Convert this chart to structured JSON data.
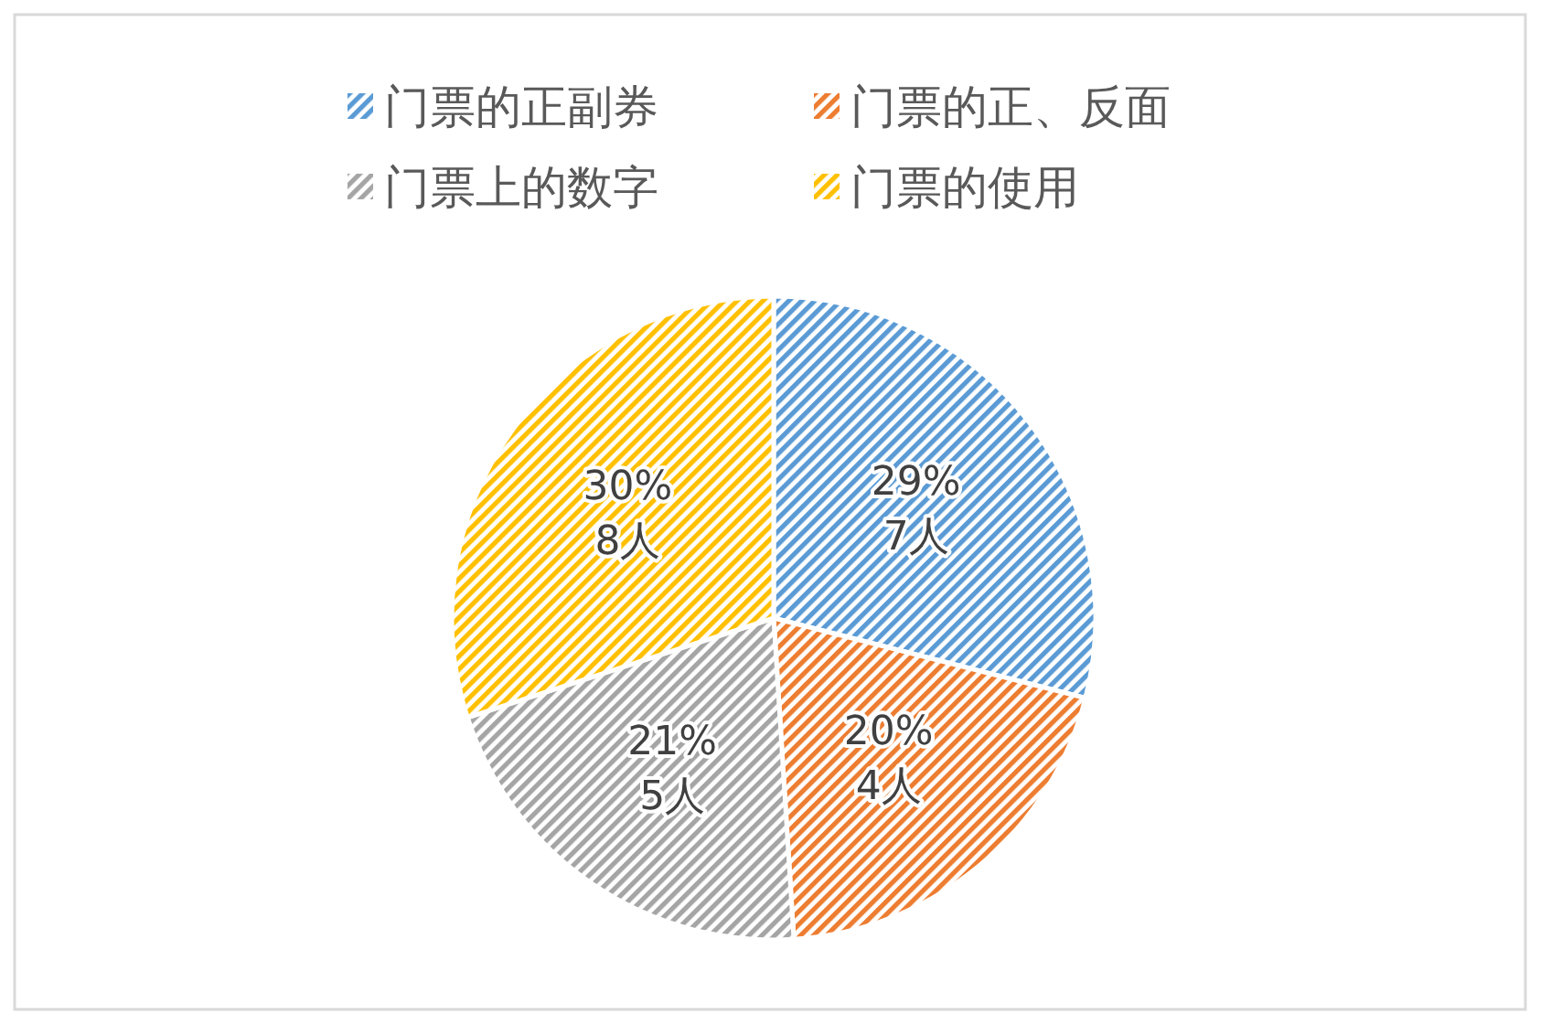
{
  "chart_data": {
    "type": "pie",
    "categories": [
      "门票的正副券",
      "门票的正、反面",
      "门票上的数字",
      "门票的使用"
    ],
    "values": [
      29,
      20,
      21,
      30
    ],
    "colors": [
      "#5b9bd5",
      "#ed7d31",
      "#a5a5a5",
      "#ffc000"
    ],
    "value_labels": [
      "29%\n7人",
      "20%\n4人",
      "21%\n5人",
      "30%\n8人"
    ],
    "legend": "top"
  }
}
